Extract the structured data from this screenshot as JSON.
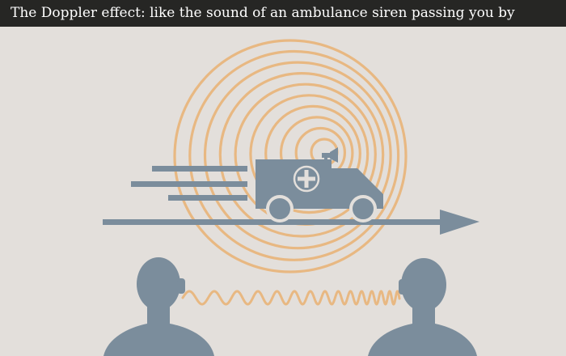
{
  "title": "The Doppler effect: like the sound of an ambulance siren passing you by",
  "colors": {
    "background": "#e3dfdb",
    "title_bar": "#262624",
    "title_text": "#ffffff",
    "slate": "#7b8d9c",
    "wave": "#e8b882"
  },
  "icons": [
    "ambulance-icon",
    "loudspeaker-icon",
    "medical-cross-icon",
    "motion-lines-icon",
    "direction-arrow-icon",
    "person-silhouette-icon",
    "sound-wave-icon"
  ]
}
